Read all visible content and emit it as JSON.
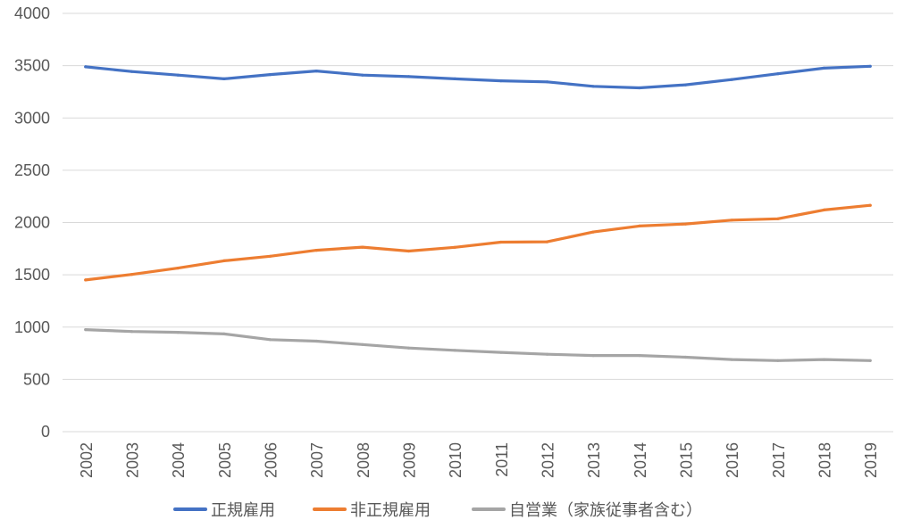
{
  "chart_data": {
    "type": "line",
    "title": "",
    "xlabel": "",
    "ylabel": "",
    "ylim": [
      0,
      4000
    ],
    "yticks": [
      "0",
      "500",
      "1000",
      "1500",
      "2000",
      "2500",
      "3000",
      "3500",
      "4000"
    ],
    "grid": true,
    "legend_position": "bottom",
    "categories": [
      "2002",
      "2003",
      "2004",
      "2005",
      "2006",
      "2007",
      "2008",
      "2009",
      "2010",
      "2011",
      "2012",
      "2013",
      "2014",
      "2015",
      "2016",
      "2017",
      "2018",
      "2019"
    ],
    "series": [
      {
        "name": "正規雇用",
        "color": "#4472c4",
        "values": [
          3489,
          3444,
          3410,
          3374,
          3415,
          3449,
          3410,
          3395,
          3374,
          3355,
          3345,
          3302,
          3288,
          3317,
          3367,
          3423,
          3476,
          3494
        ]
      },
      {
        "name": "非正規雇用",
        "color": "#ed7d31",
        "values": [
          1451,
          1504,
          1564,
          1634,
          1678,
          1735,
          1765,
          1727,
          1763,
          1812,
          1816,
          1910,
          1967,
          1986,
          2023,
          2036,
          2120,
          2165
        ]
      },
      {
        "name": "自営業（家族従事者含む）",
        "color": "#a5a5a5",
        "values": [
          976,
          958,
          950,
          935,
          880,
          866,
          833,
          800,
          778,
          758,
          740,
          728,
          728,
          712,
          690,
          680,
          690,
          680
        ]
      }
    ]
  }
}
